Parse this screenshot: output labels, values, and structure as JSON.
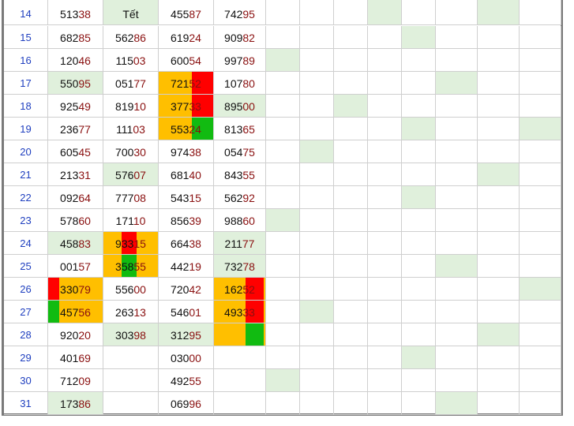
{
  "rows": [
    {
      "day": "14",
      "c1": "51338",
      "c2": "Tết",
      "c3": "45587",
      "c4": "74295"
    },
    {
      "day": "15",
      "c1": "68285",
      "c2": "56286",
      "c3": "61924",
      "c4": "90982"
    },
    {
      "day": "16",
      "c1": "12046",
      "c2": "11503",
      "c3": "60054",
      "c4": "99789"
    },
    {
      "day": "17",
      "c1": "55095",
      "c2": "05177",
      "c3": "72152",
      "c4": "10780"
    },
    {
      "day": "18",
      "c1": "92549",
      "c2": "81910",
      "c3": "37733",
      "c4": "89500"
    },
    {
      "day": "19",
      "c1": "23677",
      "c2": "11103",
      "c3": "55324",
      "c4": "81365"
    },
    {
      "day": "20",
      "c1": "60545",
      "c2": "70030",
      "c3": "97438",
      "c4": "05475"
    },
    {
      "day": "21",
      "c1": "21331",
      "c2": "57607",
      "c3": "68140",
      "c4": "84355"
    },
    {
      "day": "22",
      "c1": "09264",
      "c2": "77708",
      "c3": "54315",
      "c4": "56292"
    },
    {
      "day": "23",
      "c1": "57860",
      "c2": "17110",
      "c3": "85639",
      "c4": "98860"
    },
    {
      "day": "24",
      "c1": "45883",
      "c2": "93315",
      "c3": "66438",
      "c4": "21177"
    },
    {
      "day": "25",
      "c1": "00157",
      "c2": "35855",
      "c3": "44219",
      "c4": "73278"
    },
    {
      "day": "26",
      "c1": "33079",
      "c2": "55600",
      "c3": "72042",
      "c4": "16252"
    },
    {
      "day": "27",
      "c1": "45756",
      "c2": "26313",
      "c3": "54601",
      "c4": "49333"
    },
    {
      "day": "28",
      "c1": "92020",
      "c2": "30398",
      "c3": "31295",
      "c4": ""
    },
    {
      "day": "29",
      "c1": "40169",
      "c2": "",
      "c3": "03000",
      "c4": ""
    },
    {
      "day": "30",
      "c1": "71209",
      "c2": "",
      "c3": "49255",
      "c4": ""
    },
    {
      "day": "31",
      "c1": "17386",
      "c2": "",
      "c3": "06996",
      "c4": ""
    }
  ],
  "colors": {
    "highlight": "#e0f0dc",
    "orange": "#ffbf00",
    "red": "#ff0000",
    "green": "#11bb11",
    "day": "#1f3fbf",
    "tail": "#8a1010"
  }
}
